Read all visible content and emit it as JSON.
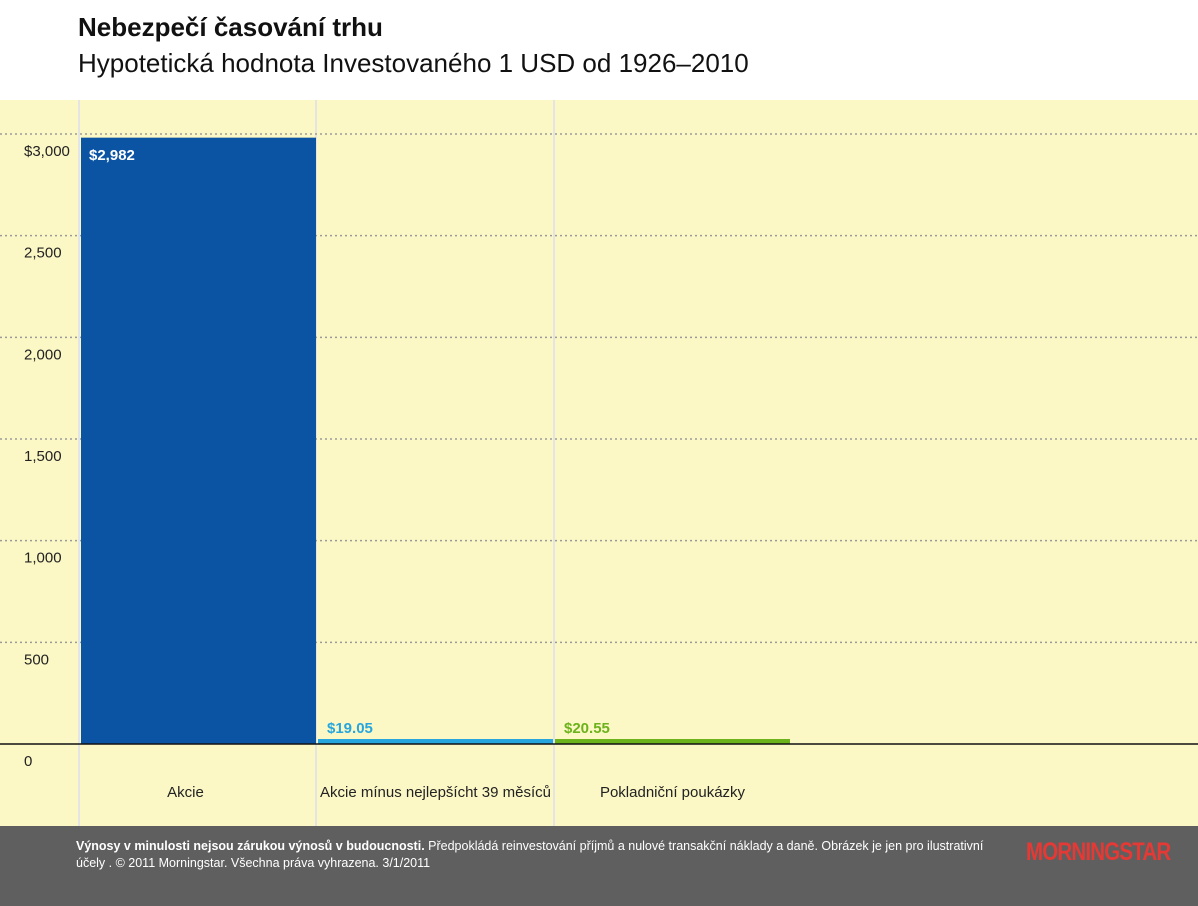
{
  "header": {
    "title": "Nebezpečí časování trhu",
    "subtitle": "Hypotetická hodnota Investovaného 1 USD od 1926–2010"
  },
  "chart_data": {
    "type": "bar",
    "title": "Nebezpečí časování trhu",
    "subtitle": "Hypotetická hodnota Investovaného 1 USD od 1926–2010",
    "xlabel": "",
    "ylabel": "",
    "ylim": [
      0,
      3000
    ],
    "yticks": [
      0,
      500,
      1000,
      1500,
      2000,
      2500,
      3000
    ],
    "ytick_labels": [
      "0",
      "500",
      "1,000",
      "1,500",
      "2,000",
      "2,500",
      "$3,000"
    ],
    "grid": true,
    "categories": [
      "Akcie",
      "Akcie mínus nejlepšícht 39 měsíců",
      "Pokladniční poukázky"
    ],
    "values": [
      2982,
      19.05,
      20.55
    ],
    "value_labels": [
      "$2,982",
      "$19.05",
      "$20.55"
    ],
    "colors": [
      "#0b54a4",
      "#27a6de",
      "#6cb21a"
    ],
    "label_colors": [
      "#ffffff",
      "#27a6de",
      "#6cb21a"
    ]
  },
  "footer": {
    "disclaimer_bold": "Výnosy v minulosti nejsou zárukou výnosů v budoucnosti.",
    "disclaimer_rest": " Předpokládá reinvestování příjmů a nulové transakční náklady a daně. Obrázek je jen pro ilustrativní účely . © 2011 Morningstar. Všechna práva vyhrazena. 3/1/2011",
    "logo": "MORNINGSTAR"
  }
}
